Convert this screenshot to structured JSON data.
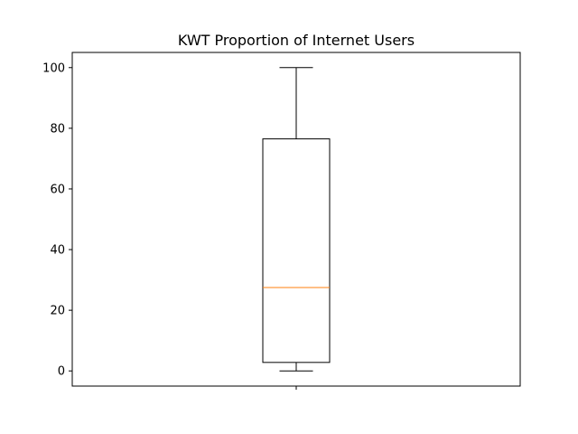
{
  "chart_data": {
    "type": "box",
    "title": "KWT Proportion of Internet Users",
    "xlabel": "",
    "ylabel": "",
    "ylim": [
      -5,
      105
    ],
    "y_ticks": [
      0,
      20,
      40,
      60,
      80,
      100
    ],
    "x_ticks": [
      ""
    ],
    "grid": false,
    "series": [
      {
        "whisker_low": 0,
        "q1": 2.8,
        "median": 27.5,
        "q3": 76.5,
        "whisker_high": 100
      }
    ],
    "colors": {
      "box": "#000000",
      "median": "#ff7f0e",
      "axes": "#000000"
    }
  }
}
